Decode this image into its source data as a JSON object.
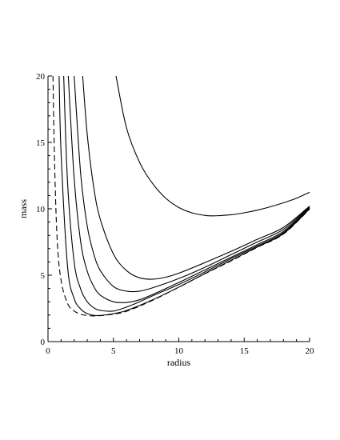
{
  "chart_data": {
    "type": "line",
    "title": "",
    "xlabel": "radius",
    "ylabel": "mass",
    "xlim": [
      0,
      20
    ],
    "ylim": [
      0,
      20
    ],
    "x_ticks": [
      0,
      5,
      10,
      15,
      20
    ],
    "y_ticks": [
      0,
      5,
      10,
      15,
      20
    ],
    "x_tick_labels": [
      "0",
      "5",
      "10",
      "15",
      "20"
    ],
    "y_tick_labels": [
      "0",
      "5",
      "10",
      "15",
      "20"
    ],
    "grid": false,
    "legend": "none",
    "series": [
      {
        "style": "dashed",
        "x": [
          0.38,
          0.5,
          0.7,
          1.0,
          1.5,
          2.0,
          2.5,
          3.0,
          3.5,
          4.0,
          5,
          6,
          8,
          10,
          12,
          14,
          16,
          18,
          20
        ],
        "y": [
          20.0,
          13.6,
          7.7,
          4.6,
          2.86,
          2.31,
          2.06,
          1.96,
          1.93,
          1.95,
          2.07,
          2.28,
          3.11,
          4.1,
          5.11,
          6.08,
          7.1,
          8.1,
          9.98
        ]
      },
      {
        "style": "solid",
        "x": [
          0.85,
          1.0,
          1.5,
          2.0,
          2.5,
          3.0,
          3.5,
          4.0,
          5,
          6,
          8,
          10,
          12,
          14,
          16,
          18,
          20
        ],
        "y": [
          20.0,
          14.2,
          5.6,
          3.25,
          2.45,
          2.11,
          1.98,
          1.97,
          2.1,
          2.34,
          3.15,
          4.1,
          5.13,
          6.12,
          7.12,
          8.12,
          10.0
        ]
      },
      {
        "style": "solid",
        "x": [
          1.2,
          1.5,
          2.0,
          2.5,
          3.0,
          3.5,
          4.0,
          5,
          6,
          7,
          8,
          10,
          12,
          14,
          16,
          18,
          20
        ],
        "y": [
          20.0,
          11.9,
          6.0,
          3.95,
          3.0,
          2.55,
          2.35,
          2.3,
          2.6,
          3.0,
          3.45,
          4.3,
          5.25,
          6.25,
          7.2,
          8.2,
          10.05
        ]
      },
      {
        "style": "solid",
        "x": [
          1.55,
          2.0,
          2.5,
          3.0,
          3.5,
          4.0,
          5,
          6,
          7,
          8,
          10,
          12,
          14,
          16,
          18,
          20
        ],
        "y": [
          20.0,
          12.3,
          7.5,
          5.3,
          4.15,
          3.5,
          3.0,
          2.95,
          3.15,
          3.55,
          4.45,
          5.4,
          6.35,
          7.3,
          8.3,
          10.1
        ]
      },
      {
        "style": "solid",
        "x": [
          2.0,
          2.5,
          3.0,
          3.5,
          4.0,
          5,
          6,
          7,
          8,
          10,
          12,
          14,
          16,
          18,
          20
        ],
        "y": [
          20.0,
          12.6,
          8.7,
          6.6,
          5.35,
          4.15,
          3.8,
          3.8,
          4.05,
          4.75,
          5.6,
          6.55,
          7.5,
          8.45,
          10.15
        ]
      },
      {
        "style": "solid",
        "x": [
          2.65,
          3.0,
          3.5,
          4.0,
          5,
          6,
          7,
          8,
          9,
          10,
          12,
          14,
          16,
          18,
          20
        ],
        "y": [
          20.0,
          15.6,
          11.6,
          9.2,
          6.6,
          5.35,
          4.8,
          4.7,
          4.85,
          5.15,
          5.95,
          6.8,
          7.7,
          8.6,
          10.2
        ]
      },
      {
        "style": "solid",
        "x": [
          5.2,
          6,
          7,
          8,
          9,
          10,
          11,
          12,
          12.6,
          13,
          14,
          15,
          16,
          17,
          18,
          19,
          20
        ],
        "y": [
          20.0,
          16.1,
          13.5,
          11.9,
          10.8,
          10.1,
          9.7,
          9.5,
          9.47,
          9.48,
          9.55,
          9.7,
          9.9,
          10.15,
          10.45,
          10.8,
          11.25
        ]
      }
    ]
  }
}
